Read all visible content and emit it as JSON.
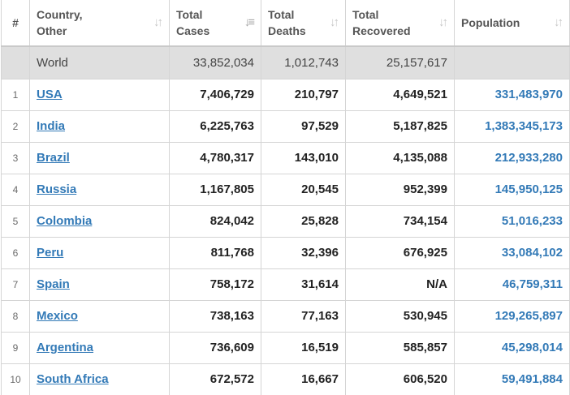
{
  "headers": {
    "num": "#",
    "country": [
      "Country,",
      "Other"
    ],
    "cases": [
      "Total",
      "Cases"
    ],
    "deaths": [
      "Total",
      "Deaths"
    ],
    "recovered": [
      "Total",
      "Recovered"
    ],
    "population": "Population"
  },
  "sort_icons": {
    "inactive": "sort-arrows-icon",
    "active": "sort-descending-icon"
  },
  "colors": {
    "link": "#337ab7",
    "world_row_bg": "#dfdfdf",
    "border": "#d5d5d5"
  },
  "world": {
    "country": "World",
    "cases": "33,852,034",
    "deaths": "1,012,743",
    "recovered": "25,157,617",
    "population": ""
  },
  "rows": [
    {
      "idx": "1",
      "country": "USA",
      "cases": "7,406,729",
      "deaths": "210,797",
      "recovered": "4,649,521",
      "population": "331,483,970"
    },
    {
      "idx": "2",
      "country": "India",
      "cases": "6,225,763",
      "deaths": "97,529",
      "recovered": "5,187,825",
      "population": "1,383,345,173"
    },
    {
      "idx": "3",
      "country": "Brazil",
      "cases": "4,780,317",
      "deaths": "143,010",
      "recovered": "4,135,088",
      "population": "212,933,280"
    },
    {
      "idx": "4",
      "country": "Russia",
      "cases": "1,167,805",
      "deaths": "20,545",
      "recovered": "952,399",
      "population": "145,950,125"
    },
    {
      "idx": "5",
      "country": "Colombia",
      "cases": "824,042",
      "deaths": "25,828",
      "recovered": "734,154",
      "population": "51,016,233"
    },
    {
      "idx": "6",
      "country": "Peru",
      "cases": "811,768",
      "deaths": "32,396",
      "recovered": "676,925",
      "population": "33,084,102"
    },
    {
      "idx": "7",
      "country": "Spain",
      "cases": "758,172",
      "deaths": "31,614",
      "recovered": "N/A",
      "population": "46,759,311"
    },
    {
      "idx": "8",
      "country": "Mexico",
      "cases": "738,163",
      "deaths": "77,163",
      "recovered": "530,945",
      "population": "129,265,897"
    },
    {
      "idx": "9",
      "country": "Argentina",
      "cases": "736,609",
      "deaths": "16,519",
      "recovered": "585,857",
      "population": "45,298,014"
    },
    {
      "idx": "10",
      "country": "South Africa",
      "cases": "672,572",
      "deaths": "16,667",
      "recovered": "606,520",
      "population": "59,491,884"
    }
  ]
}
